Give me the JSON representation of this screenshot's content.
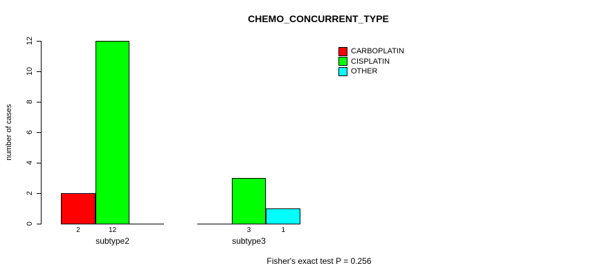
{
  "page": {
    "background": "#ffffff",
    "text_color": "#000000"
  },
  "chart_data": {
    "type": "bar",
    "title": "CHEMO_CONCURRENT_TYPE",
    "ylabel": "number of cases",
    "xlabel": "",
    "ylim": [
      0,
      12
    ],
    "yticks": [
      0,
      2,
      4,
      6,
      8,
      10,
      12
    ],
    "categories": [
      "subtype2",
      "subtype3"
    ],
    "series": [
      {
        "name": "CARBOPLATIN",
        "color": "#ff0000",
        "values": [
          2,
          0
        ]
      },
      {
        "name": "CISPLATIN",
        "color": "#00ff00",
        "values": [
          12,
          3
        ]
      },
      {
        "name": "OTHER",
        "color": "#00ffff",
        "values": [
          0,
          1
        ]
      }
    ],
    "legend": {
      "position": "top-right",
      "entries": [
        {
          "label": "CARBOPLATIN",
          "color": "#ff0000"
        },
        {
          "label": "CISPLATIN",
          "color": "#00ff00"
        },
        {
          "label": "OTHER",
          "color": "#00ffff"
        }
      ]
    },
    "grid": false,
    "bar_value_labels": "shown below axis for nonzero bars only",
    "annotation": "Fisher's exact test P = 0.256"
  }
}
